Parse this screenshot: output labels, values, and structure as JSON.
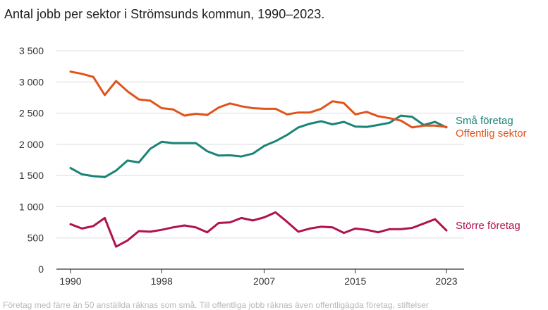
{
  "chart_data": {
    "type": "line",
    "title": "Antal jobb per sektor i Strömsunds kommun, 1990–2023.",
    "footnote": "Företag med färre än 50 anställda räknas som små. Till offentliga jobb räknas även offentligägda företag, stiftelser",
    "x": [
      1990,
      1991,
      1992,
      1993,
      1994,
      1995,
      1996,
      1997,
      1998,
      1999,
      2000,
      2001,
      2002,
      2003,
      2004,
      2005,
      2006,
      2007,
      2008,
      2009,
      2010,
      2011,
      2012,
      2013,
      2014,
      2015,
      2016,
      2017,
      2018,
      2019,
      2020,
      2021,
      2022,
      2023
    ],
    "x_ticks": [
      1990,
      1998,
      2007,
      2015,
      2023
    ],
    "y_ticks": [
      0,
      500,
      1000,
      1500,
      2000,
      2500,
      3000,
      3500
    ],
    "y_tick_labels": [
      "0",
      "500",
      "1 000",
      "1 500",
      "2 000",
      "2 500",
      "3 000",
      "3 500"
    ],
    "ylim": [
      0,
      3500
    ],
    "grid": true,
    "series": [
      {
        "name": "Små företag",
        "color": "#1a8577",
        "values": [
          1620,
          1520,
          1490,
          1475,
          1580,
          1740,
          1710,
          1930,
          2040,
          2020,
          2020,
          2020,
          1890,
          1820,
          1825,
          1805,
          1850,
          1975,
          2050,
          2150,
          2270,
          2330,
          2370,
          2320,
          2360,
          2285,
          2280,
          2310,
          2345,
          2460,
          2440,
          2310,
          2360,
          2270
        ]
      },
      {
        "name": "Offentlig sektor",
        "color": "#e0541c",
        "values": [
          3165,
          3130,
          3080,
          2790,
          3015,
          2850,
          2720,
          2700,
          2580,
          2560,
          2460,
          2490,
          2470,
          2590,
          2655,
          2610,
          2580,
          2570,
          2570,
          2480,
          2510,
          2510,
          2570,
          2690,
          2660,
          2480,
          2520,
          2450,
          2420,
          2380,
          2270,
          2300,
          2300,
          2280
        ]
      },
      {
        "name": "Större företag",
        "color": "#b0124e",
        "values": [
          720,
          650,
          690,
          820,
          360,
          460,
          610,
          600,
          630,
          670,
          700,
          670,
          590,
          740,
          750,
          820,
          780,
          830,
          910,
          760,
          600,
          650,
          680,
          670,
          580,
          650,
          630,
          590,
          640,
          640,
          660,
          730,
          800,
          620
        ]
      }
    ]
  }
}
